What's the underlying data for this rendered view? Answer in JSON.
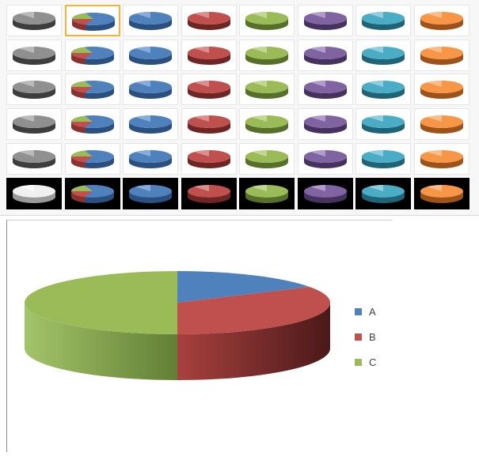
{
  "gallery": {
    "columns": [
      {
        "name": "gray",
        "top": "#909090",
        "mid": "#5f5f5f",
        "side": "#3d3d3d",
        "light": "#c8c8c8"
      },
      {
        "name": "multi",
        "top": "#4f81bd",
        "mid": "#3a6aa5",
        "side": "#2b4f7e",
        "light": "#9bbbe0"
      },
      {
        "name": "blue",
        "top": "#4f81bd",
        "mid": "#3a6aa5",
        "side": "#2b4f7e",
        "light": "#9bbbe0"
      },
      {
        "name": "red",
        "top": "#c0504d",
        "mid": "#a33e3b",
        "side": "#6e2523",
        "light": "#e2a3a1"
      },
      {
        "name": "green",
        "top": "#9bbb59",
        "mid": "#7fa03f",
        "side": "#56702a",
        "light": "#cfe0a8"
      },
      {
        "name": "purple",
        "top": "#8064a2",
        "mid": "#654c87",
        "side": "#45325f",
        "light": "#c0afd6"
      },
      {
        "name": "teal",
        "top": "#4bacc6",
        "mid": "#318ea8",
        "side": "#1f6377",
        "light": "#a7d9e6"
      },
      {
        "name": "orange",
        "top": "#f79646",
        "mid": "#d9782b",
        "side": "#9d521a",
        "light": "#fbcaa0"
      }
    ],
    "multi_colors": [
      "#4f81bd",
      "#c0504d",
      "#9bbb59"
    ],
    "selected": {
      "row": 0,
      "col": 1
    },
    "rows": 6
  },
  "chart_data": {
    "type": "pie",
    "style": "3d",
    "categories": [
      "A",
      "B",
      "C"
    ],
    "values": [
      16.7,
      33.3,
      50
    ],
    "colors": [
      "#4f81bd",
      "#c0504d",
      "#9bbb59"
    ],
    "title": "",
    "legend_position": "right"
  }
}
